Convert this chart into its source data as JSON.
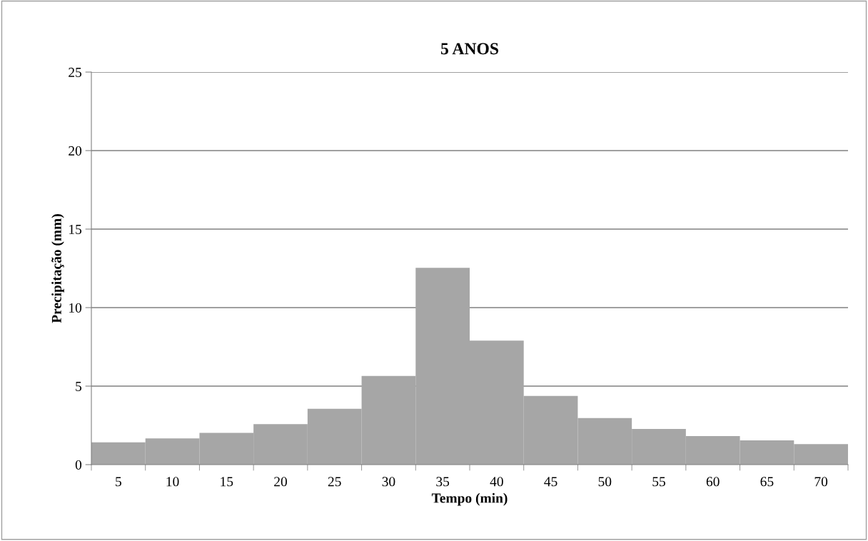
{
  "chart_data": {
    "type": "bar",
    "title": "5 ANOS",
    "xlabel": "Tempo (min)",
    "ylabel": "Precipitação (mm)",
    "categories": [
      "5",
      "10",
      "15",
      "20",
      "25",
      "30",
      "35",
      "40",
      "45",
      "50",
      "55",
      "60",
      "65",
      "70"
    ],
    "values": [
      1.42,
      1.67,
      2.02,
      2.58,
      3.56,
      5.65,
      12.53,
      7.9,
      4.37,
      2.97,
      2.27,
      1.82,
      1.55,
      1.31
    ],
    "color": "#a6a6a6",
    "ylim": [
      0,
      25
    ],
    "yticks": [
      0,
      5,
      10,
      15,
      20,
      25
    ],
    "grid": "y"
  }
}
